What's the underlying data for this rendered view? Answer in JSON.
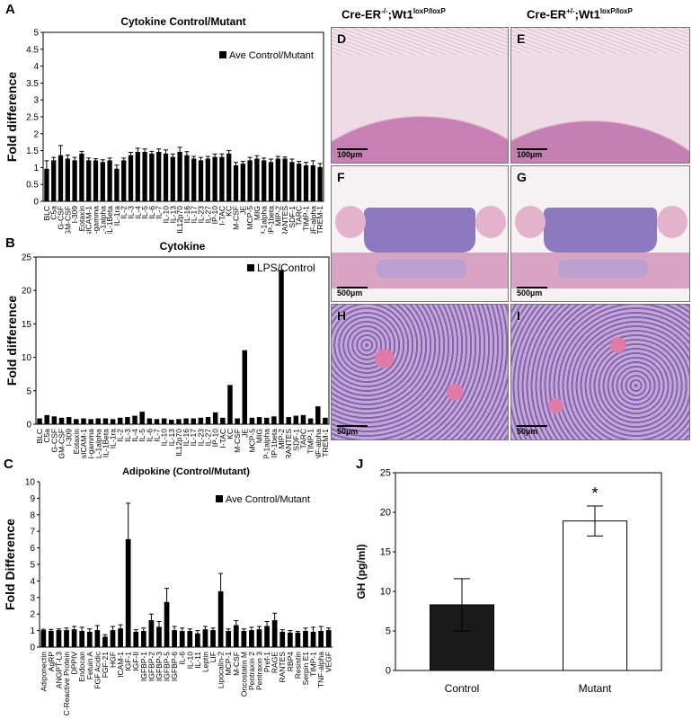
{
  "panel_letters": {
    "A": "A",
    "B": "B",
    "C": "C",
    "D": "D",
    "E": "E",
    "F": "F",
    "G": "G",
    "H": "H",
    "I": "I",
    "J": "J"
  },
  "column_headers": {
    "left_prefix": "Cre-ER",
    "left_sup": "-/-",
    "left_gene": ";Wt1",
    "left_allele": "loxP/loxP",
    "right_prefix": "Cre-ER",
    "right_sup": "+/-",
    "right_gene": ";Wt1",
    "right_allele": "loxP/loxP"
  },
  "scale_bars": {
    "D": "100µm",
    "E": "100µm",
    "F": "500µm",
    "G": "500µm",
    "H": "50µm",
    "I": "50µm"
  },
  "histology_colors": {
    "pink": "#d98bb5",
    "purple": "#8a6fb8",
    "white": "#f4eef2"
  },
  "chart_data": [
    {
      "id": "A",
      "type": "bar",
      "title": "Cytokine Control/Mutant",
      "ylabel": "Fold difference",
      "xlabel": "",
      "ylim": [
        0,
        5
      ],
      "yticks": [
        0,
        0.5,
        1,
        1.5,
        2,
        2.5,
        3,
        3.5,
        4,
        4.5,
        5
      ],
      "legend": "Ave Control/Mutant",
      "legend_position": "top-right",
      "categories": [
        "BLC",
        "C5a",
        "G-CSF",
        "GM-CSF",
        "I-309",
        "Eotaxin",
        "sICAM-1",
        "IFN-gamma",
        "IL-1alpha",
        "IL-1beta",
        "IL-1ra",
        "IL-2",
        "IL-3",
        "IL-4",
        "IL-5",
        "IL-6",
        "IL-7",
        "IL-10",
        "IL-13",
        "IL12p70",
        "IL-16",
        "IL-17",
        "IL-23",
        "IL-27",
        "IP-10",
        "I-TAC",
        "KC",
        "M-CSF",
        "JE",
        "MCP-5",
        "MIG",
        "MIP-1alpha",
        "MIP-1beta",
        "MIP-2",
        "RANTES",
        "SDF-1",
        "TARC",
        "TIMP-1",
        "TNF-alpha",
        "TREM-1"
      ],
      "tick_labels": [
        "BLC",
        "C5a",
        "G-CSF",
        "GM-CSF",
        "I-309",
        "Eotaxin",
        "sICAM-1",
        "N-gamma",
        "IL-1alpha",
        "IL-1Beta",
        "IL-1ra",
        "IL-2",
        "IL-3",
        "IL-4",
        "IL-5",
        "IL-6",
        "IL-7",
        "IL-10",
        "IL-13",
        "IL12p70",
        "IL-16",
        "IL-17",
        "IL-23",
        "IL-27",
        "IP-10",
        "I-TAC",
        "KC",
        "M-CSF",
        "JE",
        "MCP-5",
        "MIG",
        "MIP-1alpha",
        "MIP-1beta",
        "MIP-2",
        "RANTES",
        "SDF-1",
        "TARC",
        "TIMP-1",
        "TNF-alpha",
        "TREM-1"
      ],
      "values": [
        0.95,
        1.2,
        1.35,
        1.25,
        1.2,
        1.4,
        1.2,
        1.2,
        1.15,
        1.2,
        0.95,
        1.2,
        1.35,
        1.45,
        1.45,
        1.4,
        1.45,
        1.4,
        1.3,
        1.45,
        1.35,
        1.25,
        1.2,
        1.25,
        1.3,
        1.3,
        1.4,
        1.05,
        1.1,
        1.2,
        1.25,
        1.2,
        1.15,
        1.25,
        1.25,
        1.15,
        1.1,
        1.05,
        1.05,
        1.0
      ],
      "errors": [
        0.25,
        0.1,
        0.3,
        0.12,
        0.1,
        0.08,
        0.08,
        0.06,
        0.08,
        0.08,
        0.12,
        0.08,
        0.1,
        0.12,
        0.1,
        0.08,
        0.1,
        0.12,
        0.1,
        0.15,
        0.12,
        0.08,
        0.1,
        0.08,
        0.1,
        0.1,
        0.1,
        0.1,
        0.08,
        0.1,
        0.1,
        0.08,
        0.1,
        0.08,
        0.06,
        0.1,
        0.08,
        0.1,
        0.15,
        0.12
      ],
      "grid": false
    },
    {
      "id": "B",
      "type": "bar",
      "title": "Cytokine",
      "ylabel": "Fold difference",
      "xlabel": "",
      "ylim": [
        0,
        25
      ],
      "yticks": [
        0,
        5,
        10,
        15,
        20,
        25
      ],
      "legend": "LPS/Control",
      "legend_position": "top-right",
      "tick_labels": [
        "BLC",
        "C5a",
        "G-CSF",
        "GM-CSF",
        "I-309",
        "Eotaxin",
        "sICAM-1",
        "IFN-gamma",
        "IL-1alpha",
        "IL-1Beta",
        "IL-1ra",
        "IL-2",
        "IL-3",
        "IL-4",
        "IL-5",
        "IL-6",
        "IL-7",
        "IL-10",
        "IL-13",
        "IL12p70",
        "IL-16",
        "IL-17",
        "IL-23",
        "IL-27",
        "IP-10",
        "I-TAC",
        "KC",
        "M-CSF",
        "JE",
        "MCP-5",
        "MIG",
        "MIP-1alpha",
        "MIP-1beta",
        "MIP-2",
        "RANTES",
        "SDF-1",
        "TARC",
        "TIMP-1",
        "TNF-alpha",
        "TREM-1"
      ],
      "values": [
        0.8,
        1.3,
        1.1,
        0.9,
        1.0,
        0.7,
        0.8,
        0.7,
        0.8,
        0.8,
        0.7,
        0.9,
        1.0,
        1.2,
        1.8,
        0.8,
        0.7,
        0.8,
        0.6,
        0.7,
        0.8,
        0.8,
        0.9,
        1.0,
        1.7,
        0.9,
        5.8,
        0.8,
        11.0,
        0.9,
        1.0,
        0.9,
        1.1,
        23.0,
        1.0,
        1.2,
        1.3,
        0.8,
        2.6,
        0.9
      ],
      "grid": false
    },
    {
      "id": "C",
      "type": "bar",
      "title": "Adipokine (Control/Mutant)",
      "ylabel": "Fold Difference",
      "xlabel": "",
      "ylim": [
        0,
        10
      ],
      "yticks": [
        0,
        1,
        2,
        3,
        4,
        5,
        6,
        7,
        8,
        9,
        10
      ],
      "legend": "Ave Control/Mutant",
      "legend_position": "top-right",
      "tick_labels": [
        "Adiponectin",
        "AgRP",
        "ANGPT-L3",
        "C-Reactive Protein",
        "DPPIV",
        "Endocan",
        "Fetuin A",
        "FGF Acidic",
        "FGF-21",
        "HGF",
        "ICAM-1",
        "IGF-1",
        "IGF-II",
        "IGFBP-1",
        "IGFBP-2",
        "IGFBP-3",
        "IGFBP-5",
        "IGFBP-6",
        "IL-6",
        "IL-10",
        "IL-11",
        "Leptin",
        "LIF",
        "Lipocalin-2",
        "MCP-1",
        "M-CSF",
        "Oncostatin M",
        "Pentraxin 2",
        "Pentraxin 3",
        "Pref-1",
        "RAGE",
        "RANTES",
        "RBP4",
        "Resistin",
        "Serpin E1",
        "TIMP-1",
        "TNF-alpha",
        "VEGF"
      ],
      "values": [
        1.0,
        0.95,
        1.0,
        1.0,
        1.05,
        0.95,
        0.9,
        1.0,
        0.6,
        1.0,
        1.1,
        6.5,
        0.9,
        0.95,
        1.6,
        1.2,
        2.7,
        1.0,
        0.95,
        0.95,
        0.8,
        1.05,
        1.0,
        3.35,
        0.95,
        1.3,
        0.95,
        1.0,
        1.05,
        1.25,
        1.6,
        0.9,
        0.85,
        0.85,
        0.95,
        0.9,
        0.95,
        1.0
      ],
      "errors": [
        0.08,
        0.12,
        0.1,
        0.15,
        0.2,
        0.25,
        0.2,
        0.3,
        0.15,
        0.25,
        0.25,
        2.2,
        0.15,
        0.2,
        0.4,
        0.35,
        0.85,
        0.25,
        0.2,
        0.15,
        0.2,
        0.2,
        0.15,
        1.1,
        0.15,
        0.3,
        0.15,
        0.2,
        0.2,
        0.3,
        0.45,
        0.15,
        0.15,
        0.1,
        0.2,
        0.3,
        0.3,
        0.15
      ],
      "grid": false
    },
    {
      "id": "J",
      "type": "bar",
      "title": "",
      "ylabel": "GH (pg/ml)",
      "xlabel": "",
      "ylim": [
        0,
        25
      ],
      "yticks": [
        0,
        5,
        10,
        15,
        20,
        25
      ],
      "categories": [
        "Control",
        "Mutant"
      ],
      "values": [
        8.3,
        18.9
      ],
      "errors": [
        3.3,
        1.9
      ],
      "fills": [
        "#1a1a1a",
        "#ffffff"
      ],
      "annotations": [
        {
          "category": "Mutant",
          "text": "*"
        }
      ],
      "grid": false
    }
  ]
}
